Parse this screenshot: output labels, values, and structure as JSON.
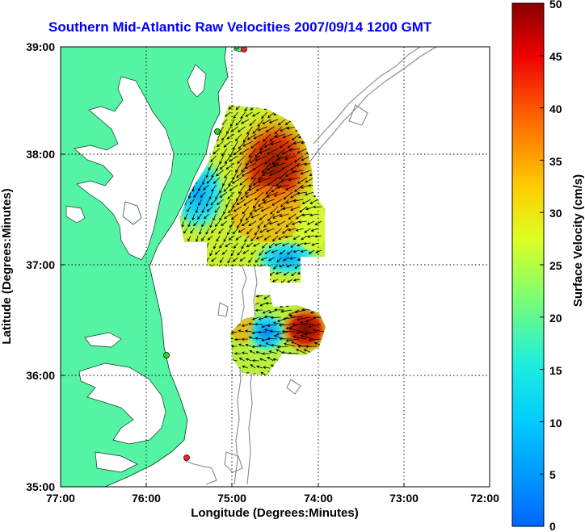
{
  "title": "Southern Mid-Atlantic Raw Velocities 2007/09/14 1200 GMT",
  "axes": {
    "xlabel": "Longitude (Degrees:Minutes)",
    "ylabel": "Latitude (Degrees:Minutes)",
    "xticks": [
      "77:00",
      "76:00",
      "75:00",
      "74:00",
      "73:00",
      "72:00"
    ],
    "yticks": [
      "39:00",
      "38:00",
      "37:00",
      "36:00",
      "35:00"
    ],
    "grid": true
  },
  "colorbar": {
    "label": "Surface Velocity (cm/s)",
    "ticks": [
      "50",
      "45",
      "40",
      "35",
      "30",
      "25",
      "20",
      "15",
      "10",
      "5",
      "0"
    ],
    "range": [
      0,
      50
    ],
    "colormap": "jet"
  },
  "colors": {
    "land": "#55f4a4",
    "title": "#0000ff",
    "bathymetry": "#888888",
    "station": "#ff2020",
    "station_alt": "#22dd22"
  }
}
